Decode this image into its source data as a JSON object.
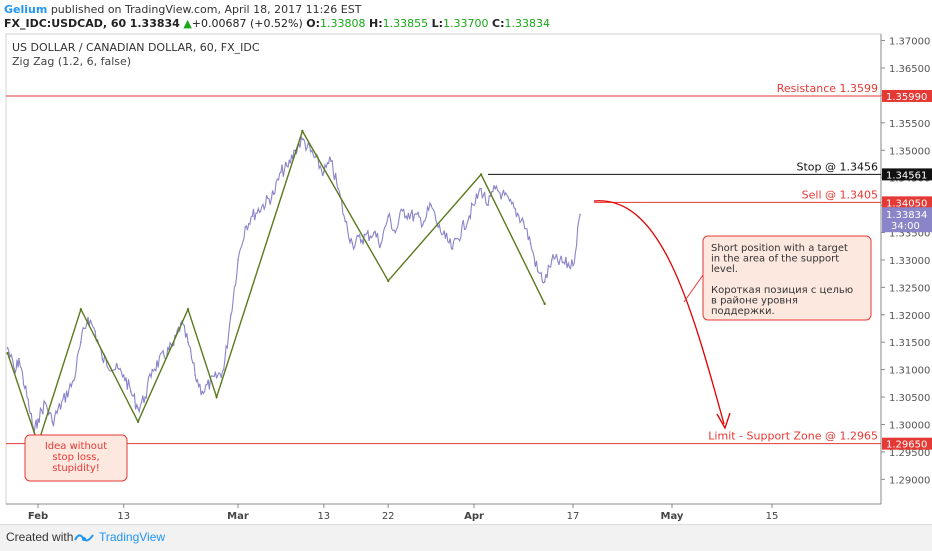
{
  "header": {
    "author": "Gelium",
    "published": "published on TradingView.com, April 18, 2017 11:26 EST",
    "symbol": "FX_IDC:USDCAD, 60",
    "last": "1.33834",
    "change": "+0.00687 (+0.52%)",
    "open_label": "O:",
    "open": "1.33808",
    "high_label": "H:",
    "high": "1.33855",
    "low_label": "L:",
    "low": "1.33700",
    "close_label": "C:",
    "close": "1.33834"
  },
  "legend": {
    "title": "US DOLLAR / CANADIAN DOLLAR, 60, FX_IDC",
    "indicator": "Zig Zag (1.2, 6, false)"
  },
  "footer": {
    "created": "Created with",
    "brand": "TradingView"
  },
  "colors": {
    "price": "#8a84c8",
    "zigzag": "#5a7a1e",
    "level_red": "#e53935",
    "level_black": "#111111",
    "arrow": "#e00000",
    "note_bg": "#fde8e0",
    "note_border": "#e53935"
  },
  "chart_data": {
    "type": "line",
    "y_axis": {
      "range": [
        1.2855,
        1.3712
      ],
      "ticks": [
        "1.37000",
        "1.36500",
        "1.36000",
        "1.35500",
        "1.35000",
        "1.34500",
        "1.34000",
        "1.33500",
        "1.33000",
        "1.32500",
        "1.32000",
        "1.31500",
        "1.31000",
        "1.30500",
        "1.30000",
        "1.29500",
        "1.29000"
      ]
    },
    "x_axis": {
      "labels": [
        {
          "text": "Feb",
          "date": "2017-02-01"
        },
        {
          "text": "13",
          "date": "2017-02-13"
        },
        {
          "text": "Mar",
          "date": "2017-03-01"
        },
        {
          "text": "13",
          "date": "2017-03-13"
        },
        {
          "text": "22",
          "date": "2017-03-22"
        },
        {
          "text": "Apr",
          "date": "2017-04-03"
        },
        {
          "text": "17",
          "date": "2017-04-17"
        },
        {
          "text": "May",
          "date": "2017-05-01"
        },
        {
          "text": "15",
          "date": "2017-05-15"
        }
      ]
    },
    "price_series": {
      "name": "USDCAD",
      "points": [
        [
          "2017-01-24",
          1.314
        ],
        [
          "2017-01-26",
          1.3095
        ],
        [
          "2017-01-27",
          1.312
        ],
        [
          "2017-01-30",
          1.302
        ],
        [
          "2017-01-31",
          1.2985
        ],
        [
          "2017-02-01",
          1.301
        ],
        [
          "2017-02-02",
          1.304
        ],
        [
          "2017-02-03",
          1.3005
        ],
        [
          "2017-02-06",
          1.308
        ],
        [
          "2017-02-07",
          1.315
        ],
        [
          "2017-02-08",
          1.3195
        ],
        [
          "2017-02-09",
          1.317
        ],
        [
          "2017-02-10",
          1.312
        ],
        [
          "2017-02-13",
          1.309
        ],
        [
          "2017-02-14",
          1.306
        ],
        [
          "2017-02-15",
          1.303
        ],
        [
          "2017-02-16",
          1.305
        ],
        [
          "2017-02-17",
          1.31
        ],
        [
          "2017-02-20",
          1.3145
        ],
        [
          "2017-02-21",
          1.3185
        ],
        [
          "2017-02-22",
          1.315
        ],
        [
          "2017-02-23",
          1.309
        ],
        [
          "2017-02-24",
          1.306
        ],
        [
          "2017-02-27",
          1.31
        ],
        [
          "2017-02-28",
          1.32
        ],
        [
          "2017-03-01",
          1.33
        ],
        [
          "2017-03-02",
          1.336
        ],
        [
          "2017-03-03",
          1.338
        ],
        [
          "2017-03-06",
          1.342
        ],
        [
          "2017-03-07",
          1.346
        ],
        [
          "2017-03-08",
          1.347
        ],
        [
          "2017-03-09",
          1.35
        ],
        [
          "2017-03-10",
          1.352
        ],
        [
          "2017-03-13",
          1.346
        ],
        [
          "2017-03-14",
          1.348
        ],
        [
          "2017-03-15",
          1.343
        ],
        [
          "2017-03-16",
          1.337
        ],
        [
          "2017-03-17",
          1.333
        ],
        [
          "2017-03-20",
          1.335
        ],
        [
          "2017-03-21",
          1.333
        ],
        [
          "2017-03-22",
          1.338
        ],
        [
          "2017-03-23",
          1.335
        ],
        [
          "2017-03-24",
          1.339
        ],
        [
          "2017-03-27",
          1.337
        ],
        [
          "2017-03-28",
          1.34
        ],
        [
          "2017-03-29",
          1.336
        ],
        [
          "2017-03-30",
          1.334
        ],
        [
          "2017-03-31",
          1.332
        ],
        [
          "2017-04-03",
          1.34
        ],
        [
          "2017-04-04",
          1.343
        ],
        [
          "2017-04-05",
          1.34
        ],
        [
          "2017-04-06",
          1.343
        ],
        [
          "2017-04-07",
          1.342
        ],
        [
          "2017-04-10",
          1.337
        ],
        [
          "2017-04-11",
          1.333
        ],
        [
          "2017-04-12",
          1.328
        ],
        [
          "2017-04-13",
          1.326
        ],
        [
          "2017-04-14",
          1.33
        ],
        [
          "2017-04-17",
          1.329
        ],
        [
          "2017-04-18",
          1.3383
        ]
      ]
    },
    "zigzag": {
      "name": "Zig Zag",
      "points": [
        [
          "2017-01-24",
          1.313
        ],
        [
          "2017-02-01",
          1.2965
        ],
        [
          "2017-02-07",
          1.321
        ],
        [
          "2017-02-15",
          1.3005
        ],
        [
          "2017-02-22",
          1.321
        ],
        [
          "2017-02-26",
          1.305
        ],
        [
          "2017-03-10",
          1.3535
        ],
        [
          "2017-03-22",
          1.3262
        ],
        [
          "2017-04-04",
          1.3456
        ],
        [
          "2017-04-13",
          1.322
        ]
      ]
    },
    "levels": [
      {
        "name": "resistance",
        "label": "Resistance 1.3599",
        "value": 1.3599,
        "axis_label": "1.35990",
        "color": "#e53935"
      },
      {
        "name": "stop",
        "label": "Stop @ 1.3456",
        "value": 1.3456,
        "axis_label": "1.34561",
        "color": "#111111"
      },
      {
        "name": "sell",
        "label": "Sell @ 1.3405",
        "value": 1.3405,
        "axis_label": "1.34050",
        "color": "#e53935"
      },
      {
        "name": "limit",
        "label": "Limit - Support Zone @ 1.2965",
        "value": 1.2965,
        "axis_label": "1.29650",
        "color": "#e53935"
      }
    ],
    "current_price": {
      "value": 1.33834,
      "axis_label": "1.33834",
      "countdown": "34:00"
    },
    "annotations": [
      {
        "name": "short-position-note",
        "lines": [
          "Short position with a target",
          "in the area of the support",
          "level.",
          "",
          "Короткая позиция с целью",
          "в районе уровня",
          "поддержки."
        ]
      },
      {
        "name": "no-stop-note",
        "lines": [
          "Idea without",
          "stop loss,",
          "stupidity!"
        ]
      }
    ]
  }
}
